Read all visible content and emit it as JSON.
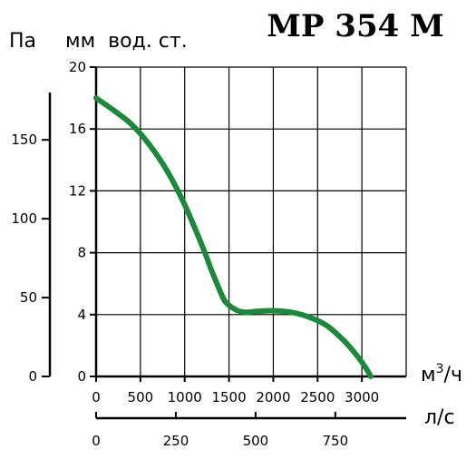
{
  "chart_data": {
    "type": "line",
    "title": "MP 354 M",
    "ylabel_left": "Па",
    "ylabel_right": "мм  вод. ст.",
    "xlabel_top": "м³/ч",
    "xlabel_bottom": "л/с",
    "xlabel_top_base": "м",
    "xlabel_top_sup": "3",
    "xlabel_top_suffix": "/ч",
    "xlim": [
      0,
      3500
    ],
    "ylim": [
      0,
      20
    ],
    "grid": true,
    "x_ticks": [
      "0",
      "500",
      "1000",
      "1500",
      "2000",
      "2500",
      "3000"
    ],
    "x_tick_values": [
      0,
      500,
      1000,
      1500,
      2000,
      2500,
      3000
    ],
    "y_ticks": [
      "0",
      "4",
      "8",
      "12",
      "16",
      "20"
    ],
    "y_tick_values": [
      0,
      4,
      8,
      12,
      16,
      20
    ],
    "pa_ticks": [
      "0",
      "50",
      "100",
      "150"
    ],
    "pa_tick_values": [
      0,
      50,
      100,
      150
    ],
    "ls_ticks": [
      "0",
      "250",
      "500",
      "750"
    ],
    "ls_tick_values": [
      0,
      250,
      500,
      750
    ],
    "series": [
      {
        "color": "#1a8a3a",
        "x": [
          0,
          200,
          400,
          600,
          800,
          1000,
          1200,
          1300,
          1400,
          1450,
          1500,
          1600,
          1700,
          1800,
          2000,
          2200,
          2400,
          2600,
          2800,
          2950,
          3050,
          3100
        ],
        "y": [
          18.0,
          17.2,
          16.3,
          15.0,
          13.3,
          11.1,
          8.4,
          6.9,
          5.5,
          4.9,
          4.6,
          4.25,
          4.15,
          4.2,
          4.25,
          4.15,
          3.85,
          3.3,
          2.3,
          1.3,
          0.5,
          0.0
        ]
      }
    ]
  }
}
